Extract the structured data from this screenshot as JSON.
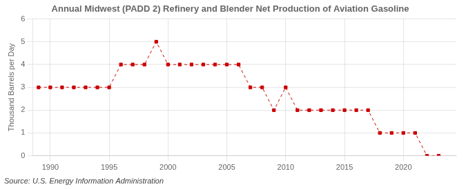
{
  "chart_data": {
    "type": "line",
    "title": "Annual Midwest (PADD 2) Refinery and Blender Net Production of Aviation Gasoline",
    "ylabel": "Thousand Barrels per Day",
    "source": "Source: U.S. Energy Information Administration",
    "x": [
      1989,
      1990,
      1991,
      1992,
      1993,
      1994,
      1995,
      1996,
      1997,
      1998,
      1999,
      2000,
      2001,
      2002,
      2003,
      2004,
      2005,
      2006,
      2007,
      2008,
      2009,
      2010,
      2011,
      2012,
      2013,
      2014,
      2015,
      2016,
      2017,
      2018,
      2019,
      2020,
      2021,
      2022,
      2023
    ],
    "values": [
      3,
      3,
      3,
      3,
      3,
      3,
      3,
      4,
      4,
      4,
      5,
      4,
      4,
      4,
      4,
      4,
      4,
      4,
      3,
      3,
      2,
      3,
      2,
      2,
      2,
      2,
      2,
      2,
      2,
      1,
      1,
      1,
      1,
      0,
      0
    ],
    "color": "#cc0000",
    "marker": "square",
    "line_style": "dashed",
    "xlim": [
      1988.5,
      2024.5
    ],
    "ylim": [
      0,
      6
    ],
    "xticks": [
      1990,
      1995,
      2000,
      2005,
      2010,
      2015,
      2020
    ],
    "yticks": [
      0,
      1,
      2,
      3,
      4,
      5,
      6
    ],
    "grid": true
  }
}
